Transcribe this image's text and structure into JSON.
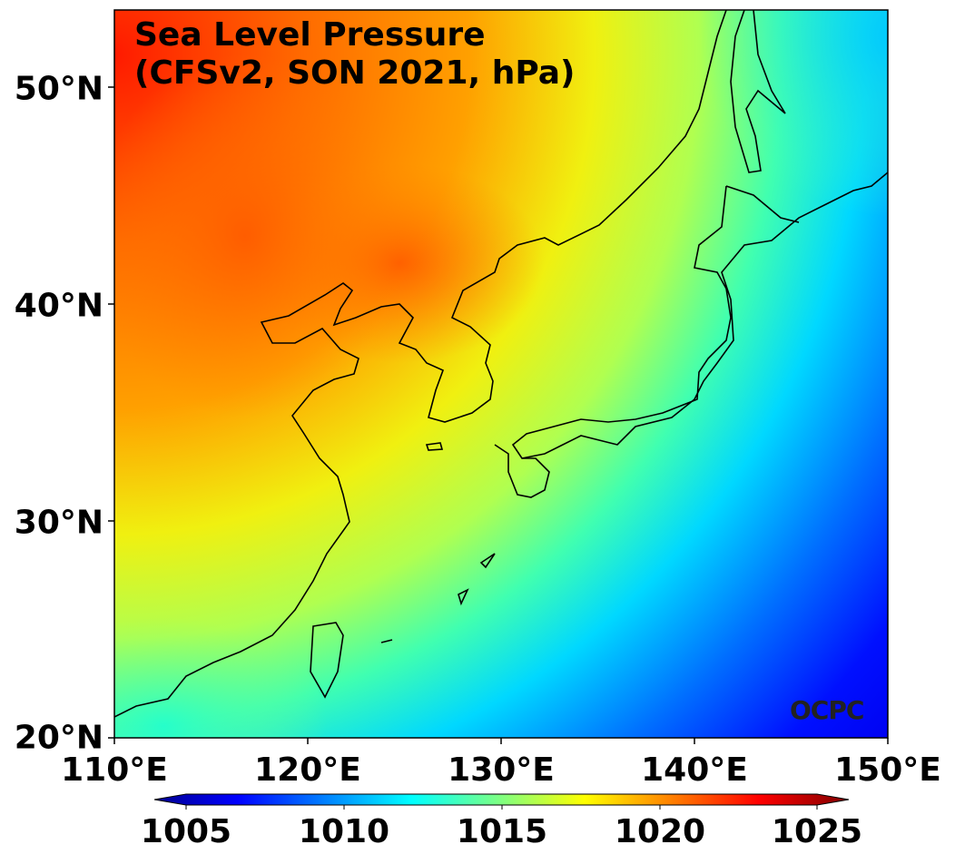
{
  "chart_data": {
    "type": "heatmap",
    "title_line1": "Sea Level Pressure",
    "title_line2": "(CFSv2, SON 2021, hPa)",
    "x_ticks": [
      "110°E",
      "120°E",
      "130°E",
      "140°E",
      "150°E"
    ],
    "y_ticks": [
      "20°N",
      "30°N",
      "40°N",
      "50°N"
    ],
    "xlim": [
      110,
      150
    ],
    "ylim": [
      20,
      53.5
    ],
    "colorbar": {
      "ticks": [
        "1005",
        "1010",
        "1015",
        "1020",
        "1025"
      ],
      "range": [
        1005,
        1025
      ],
      "colormap": "jet",
      "extend": "both"
    },
    "field_summary": [
      {
        "region": "NW (Mongolia/N China)",
        "value": 1022
      },
      {
        "region": "N Korea/NE China",
        "value": 1021
      },
      {
        "region": "Japan",
        "value": 1017
      },
      {
        "region": "NE corner",
        "value": 1012
      },
      {
        "region": "SE corner",
        "value": 1006
      },
      {
        "region": "SW corner",
        "value": 1013
      }
    ],
    "watermark": "OCPC"
  }
}
